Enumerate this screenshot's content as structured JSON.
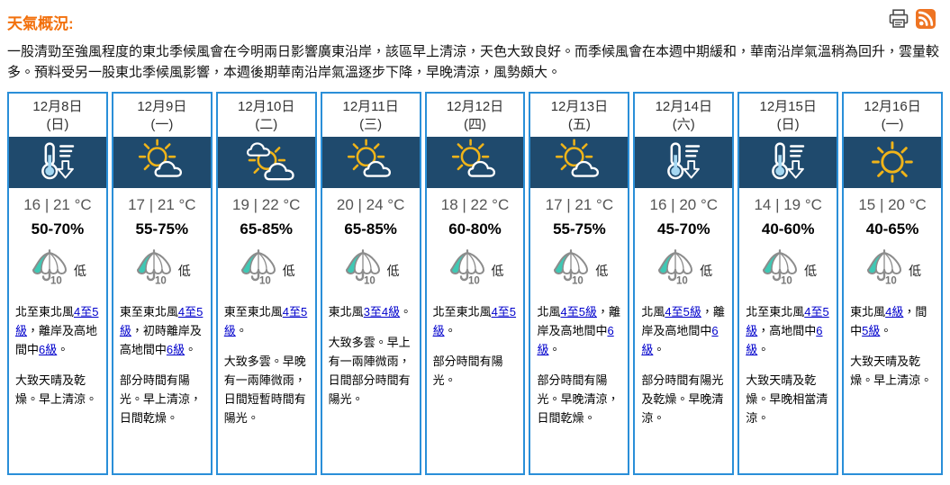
{
  "page": {
    "title": "天氣概況:",
    "summary": "一股清勁至強風程度的東北季候風會在今明兩日影響廣東沿岸，該區早上清涼，天色大致良好。而季候風會在本週中期緩和，華南沿岸氣溫稍為回升，雲量較多。預料受另一股東北季候風影響，本週後期華南沿岸氣溫逐步下降，早晚清涼，風勢頗大。"
  },
  "colors": {
    "title_orange": "#f2700c",
    "card_border": "#2a8fd8",
    "icon_band_bg": "#1f4a6d",
    "link_blue": "#0000cc",
    "rss_orange": "#ee7423",
    "umbrella_teal": "#3fc8b4",
    "sun_yellow": "#f0b419"
  },
  "forecast": {
    "days": [
      {
        "date": "12月8日",
        "weekday": "(日)",
        "icon": "cold",
        "temp": "16 | 21 °C",
        "humidity": "50-70%",
        "rain_label": "低",
        "wind": [
          {
            "t": "北至東北風"
          },
          {
            "l": "4至5級"
          },
          {
            "t": "，離岸及高地間中"
          },
          {
            "l": "6級"
          },
          {
            "t": "。"
          }
        ],
        "weather": "大致天晴及乾燥。早上清涼。"
      },
      {
        "date": "12月9日",
        "weekday": "(一)",
        "icon": "sunny-periods",
        "temp": "17 | 21 °C",
        "humidity": "55-75%",
        "rain_label": "低",
        "wind": [
          {
            "t": "東至東北風"
          },
          {
            "l": "4至5級"
          },
          {
            "t": "，初時離岸及高地間中"
          },
          {
            "l": "6級"
          },
          {
            "t": "。"
          }
        ],
        "weather": "部分時間有陽光。早上清涼，日間乾燥。"
      },
      {
        "date": "12月10日",
        "weekday": "(二)",
        "icon": "sunny-intervals",
        "temp": "19 | 22 °C",
        "humidity": "65-85%",
        "rain_label": "低",
        "wind": [
          {
            "t": "東至東北風"
          },
          {
            "l": "4至5級"
          },
          {
            "t": "。"
          }
        ],
        "weather": "大致多雲。早晚有一兩陣微雨，日間短暫時間有陽光。"
      },
      {
        "date": "12月11日",
        "weekday": "(三)",
        "icon": "sunny-periods",
        "temp": "20 | 24 °C",
        "humidity": "65-85%",
        "rain_label": "低",
        "wind": [
          {
            "t": "東北風"
          },
          {
            "l": "3至4級"
          },
          {
            "t": "。"
          }
        ],
        "weather": "大致多雲。早上有一兩陣微雨，日間部分時間有陽光。"
      },
      {
        "date": "12月12日",
        "weekday": "(四)",
        "icon": "sunny-periods",
        "temp": "18 | 22 °C",
        "humidity": "60-80%",
        "rain_label": "低",
        "wind": [
          {
            "t": "北至東北風"
          },
          {
            "l": "4至5級"
          },
          {
            "t": "。"
          }
        ],
        "weather": "部分時間有陽光。"
      },
      {
        "date": "12月13日",
        "weekday": "(五)",
        "icon": "sunny-periods",
        "temp": "17 | 21 °C",
        "humidity": "55-75%",
        "rain_label": "低",
        "wind": [
          {
            "t": "北風"
          },
          {
            "l": "4至5級"
          },
          {
            "t": "，離岸及高地間中"
          },
          {
            "l": "6級"
          },
          {
            "t": "。"
          }
        ],
        "weather": "部分時間有陽光。早晚清涼，日間乾燥。"
      },
      {
        "date": "12月14日",
        "weekday": "(六)",
        "icon": "cold",
        "temp": "16 | 20 °C",
        "humidity": "45-70%",
        "rain_label": "低",
        "wind": [
          {
            "t": "北風"
          },
          {
            "l": "4至5級"
          },
          {
            "t": "，離岸及高地間中"
          },
          {
            "l": "6級"
          },
          {
            "t": "。"
          }
        ],
        "weather": "部分時間有陽光及乾燥。早晚清涼。"
      },
      {
        "date": "12月15日",
        "weekday": "(日)",
        "icon": "cold",
        "temp": "14 | 19 °C",
        "humidity": "40-60%",
        "rain_label": "低",
        "wind": [
          {
            "t": "北至東北風"
          },
          {
            "l": "4至5級"
          },
          {
            "t": "，高地間中"
          },
          {
            "l": "6級"
          },
          {
            "t": "。"
          }
        ],
        "weather": "大致天晴及乾燥。早晚相當清涼。"
      },
      {
        "date": "12月16日",
        "weekday": "(一)",
        "icon": "sunny",
        "temp": "15 | 20 °C",
        "humidity": "40-65%",
        "rain_label": "低",
        "wind": [
          {
            "t": "東北風"
          },
          {
            "l": "4級"
          },
          {
            "t": "，間中"
          },
          {
            "l": "5級"
          },
          {
            "t": "。"
          }
        ],
        "weather": "大致天晴及乾燥。早上清涼。"
      }
    ]
  }
}
